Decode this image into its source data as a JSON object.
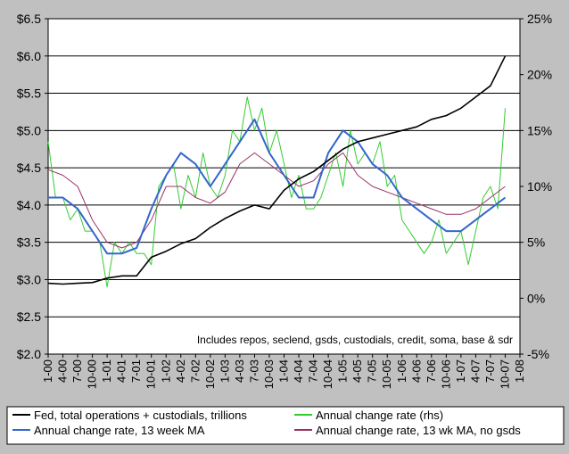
{
  "chart_data": {
    "type": "line",
    "annotation": "Includes repos, seclend, gsds, custodials, credit, soma, base & sdr",
    "x_ticks": [
      "1-00",
      "4-00",
      "7-00",
      "10-00",
      "1-01",
      "4-01",
      "7-01",
      "10-01",
      "1-02",
      "4-02",
      "7-02",
      "10-02",
      "1-03",
      "4-03",
      "7-03",
      "10-03",
      "1-04",
      "4-04",
      "7-04",
      "10-04",
      "1-05",
      "4-05",
      "7-05",
      "10-05",
      "1-06",
      "4-06",
      "7-06",
      "10-06",
      "1-07",
      "4-07",
      "7-07",
      "10-07",
      "1-08"
    ],
    "y_left_ticks": [
      "$2.0",
      "$2.5",
      "$3.0",
      "$3.5",
      "$4.0",
      "$4.5",
      "$5.0",
      "$5.5",
      "$6.0",
      "$6.5"
    ],
    "y_left_lim": [
      2.0,
      6.5
    ],
    "y_right_ticks": [
      "-5%",
      "0%",
      "5%",
      "10%",
      "15%",
      "20%",
      "25%"
    ],
    "y_right_lim": [
      -5,
      25
    ],
    "grid": "horizontal",
    "legend_position": "bottom",
    "series": [
      {
        "name": "Fed, total operations + custodials, trillions",
        "axis": "left",
        "color": "#000000",
        "x": [
          0,
          1,
          2,
          3,
          4,
          5,
          6,
          7,
          8,
          9,
          10,
          11,
          12,
          13,
          14,
          15,
          16,
          17,
          18,
          19,
          20,
          21,
          22,
          23,
          24,
          25,
          26,
          27,
          28,
          29,
          30,
          31
        ],
        "y": [
          2.95,
          2.94,
          2.95,
          2.96,
          3.02,
          3.05,
          3.05,
          3.3,
          3.38,
          3.48,
          3.55,
          3.7,
          3.82,
          3.92,
          4.0,
          3.95,
          4.2,
          4.35,
          4.45,
          4.6,
          4.75,
          4.85,
          4.9,
          4.95,
          5.0,
          5.05,
          5.15,
          5.2,
          5.3,
          5.45,
          5.6,
          6.0
        ]
      },
      {
        "name": "Annual change rate (rhs)",
        "axis": "right",
        "color": "#33cc33",
        "x": [
          0,
          0.5,
          1,
          1.5,
          2,
          2.5,
          3,
          3.5,
          4,
          4.5,
          5,
          5.5,
          6,
          6.5,
          7,
          7.5,
          8,
          8.5,
          9,
          9.5,
          10,
          10.5,
          11,
          11.5,
          12,
          12.5,
          13,
          13.5,
          14,
          14.5,
          15,
          15.5,
          16,
          16.5,
          17,
          17.5,
          18,
          18.5,
          19,
          19.5,
          20,
          20.5,
          21,
          21.5,
          22,
          22.5,
          23,
          23.5,
          24,
          24.5,
          25,
          25.5,
          26,
          26.5,
          27,
          27.5,
          28,
          28.5,
          29,
          29.5,
          30,
          30.5,
          31
        ],
        "y": [
          14,
          9,
          9,
          7,
          8,
          6,
          6,
          5,
          1,
          5,
          4,
          5,
          4,
          4,
          3,
          10,
          11,
          12,
          8,
          11,
          9,
          13,
          10,
          9,
          11,
          15,
          14,
          18,
          15,
          17,
          13,
          15,
          12,
          9,
          11,
          8,
          8,
          9,
          11,
          13,
          10,
          15,
          12,
          13,
          12,
          14,
          10,
          11,
          7,
          6,
          5,
          4,
          5,
          7,
          4,
          5,
          6,
          3,
          6,
          9,
          10,
          8,
          17
        ]
      },
      {
        "name": "Annual change rate, 13 week MA",
        "axis": "right",
        "color": "#3366cc",
        "x": [
          0,
          1,
          2,
          3,
          4,
          5,
          6,
          7,
          8,
          9,
          10,
          11,
          12,
          13,
          14,
          15,
          16,
          17,
          18,
          19,
          20,
          21,
          22,
          23,
          24,
          25,
          26,
          27,
          28,
          29,
          30,
          31
        ],
        "y": [
          9,
          9,
          8,
          6,
          4,
          4,
          4.5,
          8,
          11,
          13,
          12,
          10,
          12,
          14,
          16,
          13,
          11,
          9,
          9,
          13,
          15,
          14,
          12,
          11,
          9,
          8,
          7,
          6,
          6,
          7,
          8,
          9
        ]
      },
      {
        "name": "Annual change rate, 13 wk MA, no gsds",
        "axis": "right",
        "color": "#993366",
        "x": [
          0,
          1,
          2,
          3,
          4,
          5,
          6,
          7,
          8,
          9,
          10,
          11,
          12,
          13,
          14,
          15,
          16,
          17,
          18,
          19,
          20,
          21,
          22,
          23,
          24,
          25,
          26,
          27,
          28,
          29,
          30,
          31
        ],
        "y": [
          11.5,
          11,
          10,
          7,
          5,
          4.5,
          5,
          7,
          10,
          10,
          9,
          8.5,
          9.5,
          12,
          13,
          12,
          11,
          10,
          10.5,
          12,
          13,
          11,
          10,
          9.5,
          9,
          8.5,
          8,
          7.5,
          7.5,
          8,
          9,
          10
        ]
      }
    ]
  }
}
